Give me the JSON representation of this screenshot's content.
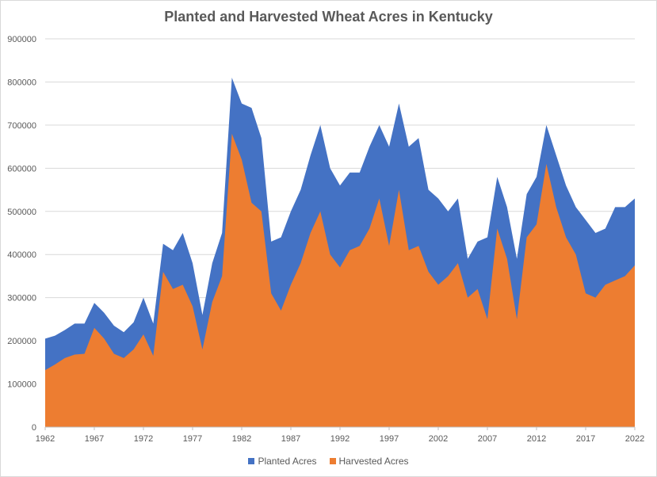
{
  "chart_data": {
    "type": "area",
    "title": "Planted and Harvested Wheat Acres in Kentucky",
    "xlabel": "",
    "ylabel": "",
    "ylim": [
      0,
      900000
    ],
    "yticks": [
      0,
      100000,
      200000,
      300000,
      400000,
      500000,
      600000,
      700000,
      800000,
      900000
    ],
    "ytick_labels": [
      "0",
      "100000",
      "200000",
      "300000",
      "400000",
      "500000",
      "600000",
      "700000",
      "800000",
      "900000"
    ],
    "xtick_labels": [
      "1962",
      "1967",
      "1972",
      "1977",
      "1982",
      "1987",
      "1992",
      "1997",
      "2002",
      "2007",
      "2012",
      "2017",
      "2022"
    ],
    "grid": true,
    "legend": "bottom",
    "x": [
      1962,
      1963,
      1964,
      1965,
      1966,
      1967,
      1968,
      1969,
      1970,
      1971,
      1972,
      1973,
      1974,
      1975,
      1976,
      1977,
      1978,
      1979,
      1980,
      1981,
      1982,
      1983,
      1984,
      1985,
      1986,
      1987,
      1988,
      1989,
      1990,
      1991,
      1992,
      1993,
      1994,
      1995,
      1996,
      1997,
      1998,
      1999,
      2000,
      2001,
      2002,
      2003,
      2004,
      2005,
      2006,
      2007,
      2008,
      2009,
      2010,
      2011,
      2012,
      2013,
      2014,
      2015,
      2016,
      2017,
      2018,
      2019,
      2020,
      2021,
      2022
    ],
    "series": [
      {
        "name": "Planted Acres",
        "color": "#4472C4",
        "values": [
          205000,
          212000,
          225000,
          240000,
          240000,
          288000,
          265000,
          235000,
          220000,
          243000,
          300000,
          240000,
          425000,
          410000,
          450000,
          380000,
          260000,
          380000,
          450000,
          810000,
          750000,
          740000,
          670000,
          430000,
          440000,
          500000,
          550000,
          630000,
          700000,
          600000,
          560000,
          590000,
          590000,
          650000,
          700000,
          650000,
          750000,
          650000,
          670000,
          550000,
          530000,
          500000,
          530000,
          390000,
          430000,
          440000,
          580000,
          510000,
          390000,
          540000,
          580000,
          700000,
          630000,
          560000,
          510000,
          480000,
          450000,
          460000,
          510000,
          510000,
          530000
        ]
      },
      {
        "name": "Harvested Acres",
        "color": "#ED7D31",
        "values": [
          132000,
          145000,
          160000,
          168000,
          170000,
          230000,
          205000,
          170000,
          160000,
          180000,
          215000,
          165000,
          360000,
          320000,
          330000,
          280000,
          180000,
          290000,
          350000,
          680000,
          620000,
          520000,
          500000,
          310000,
          270000,
          330000,
          380000,
          450000,
          500000,
          400000,
          370000,
          410000,
          420000,
          460000,
          530000,
          420000,
          550000,
          410000,
          420000,
          360000,
          330000,
          350000,
          380000,
          300000,
          320000,
          250000,
          460000,
          390000,
          250000,
          440000,
          470000,
          610000,
          510000,
          440000,
          400000,
          310000,
          300000,
          330000,
          340000,
          350000,
          375000
        ]
      }
    ]
  }
}
